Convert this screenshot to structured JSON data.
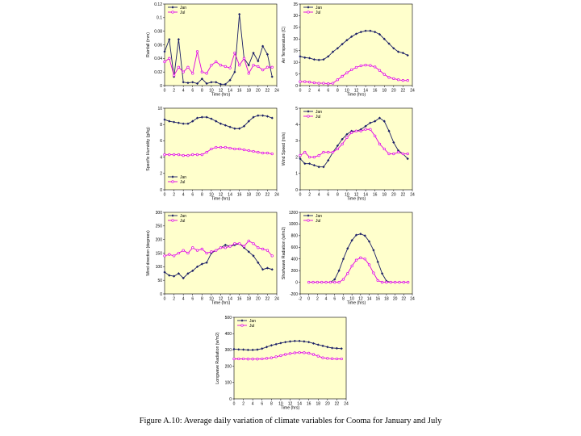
{
  "figure": {
    "caption": "Figure A.10: Average daily variation of climate variables for Cooma for January and July"
  },
  "colors": {
    "jan": "#1b1f66",
    "jul": "#e000e0",
    "plot_bg": "#ffffcc"
  },
  "chart_data": [
    {
      "type": "line",
      "xlabel": "Time (hrs)",
      "ylabel": "Rainfall (mm)",
      "xlim": [
        0,
        24
      ],
      "xticks": [
        0,
        2,
        4,
        6,
        8,
        10,
        12,
        14,
        16,
        18,
        20,
        22,
        24
      ],
      "ylim": [
        0,
        0.12
      ],
      "yticks": [
        "0",
        "0.02",
        "0.04",
        "0.06",
        "0.08",
        "0.1",
        "0.12"
      ],
      "legend": "top-left",
      "series": [
        {
          "name": "Jan",
          "x": [
            0,
            1,
            2,
            3,
            4,
            5,
            6,
            7,
            8,
            9,
            10,
            11,
            12,
            13,
            14,
            15,
            16,
            17,
            18,
            19,
            20,
            21,
            22,
            23
          ],
          "values": [
            0.05,
            0.068,
            0.013,
            0.068,
            0.005,
            0.004,
            0.005,
            0.003,
            0.01,
            0.003,
            0.005,
            0.005,
            0.002,
            0.002,
            0.008,
            0.02,
            0.105,
            0.04,
            0.03,
            0.048,
            0.036,
            0.058,
            0.046,
            0.013
          ]
        },
        {
          "name": "Jul",
          "x": [
            0,
            1,
            2,
            3,
            4,
            5,
            6,
            7,
            8,
            9,
            10,
            11,
            12,
            13,
            14,
            15,
            16,
            17,
            18,
            19,
            20,
            21,
            22,
            23
          ],
          "values": [
            0.035,
            0.04,
            0.015,
            0.027,
            0.02,
            0.027,
            0.018,
            0.05,
            0.02,
            0.018,
            0.03,
            0.035,
            0.03,
            0.028,
            0.026,
            0.048,
            0.03,
            0.04,
            0.018,
            0.03,
            0.028,
            0.023,
            0.027,
            0.027
          ]
        }
      ]
    },
    {
      "type": "line",
      "xlabel": "Time (hrs)",
      "ylabel": "Air Temperature (C)",
      "xlim": [
        0,
        24
      ],
      "xticks": [
        0,
        2,
        4,
        6,
        8,
        10,
        12,
        14,
        16,
        18,
        20,
        22,
        24
      ],
      "ylim": [
        0,
        35
      ],
      "yticks": [
        "0",
        "5",
        "10",
        "15",
        "20",
        "25",
        "30",
        "35"
      ],
      "legend": "top-left",
      "series": [
        {
          "name": "Jan",
          "x": [
            0,
            1,
            2,
            3,
            4,
            5,
            6,
            7,
            8,
            9,
            10,
            11,
            12,
            13,
            14,
            15,
            16,
            17,
            18,
            19,
            20,
            21,
            22,
            23
          ],
          "values": [
            12.5,
            12,
            11.8,
            11.2,
            11,
            11.2,
            12.5,
            14.5,
            16,
            17.8,
            19.5,
            21,
            22.2,
            23,
            23.5,
            23.5,
            23,
            22,
            20,
            18,
            16,
            14.5,
            14,
            13
          ]
        },
        {
          "name": "Jul",
          "x": [
            0,
            1,
            2,
            3,
            4,
            5,
            6,
            7,
            8,
            9,
            10,
            11,
            12,
            13,
            14,
            15,
            16,
            17,
            18,
            19,
            20,
            21,
            22,
            23
          ],
          "values": [
            1.7,
            1.7,
            1.5,
            1.2,
            1,
            1,
            0.8,
            1,
            2.5,
            4,
            5.5,
            6.8,
            7.8,
            8.5,
            8.8,
            8.6,
            8,
            6.5,
            4.8,
            3.5,
            3,
            2.5,
            2.2,
            2.2
          ]
        }
      ]
    },
    {
      "type": "line",
      "xlabel": "Time (hrs)",
      "ylabel": "Specific Humidity (g/kg)",
      "xlim": [
        0,
        24
      ],
      "xticks": [
        0,
        2,
        4,
        6,
        8,
        10,
        12,
        14,
        16,
        18,
        20,
        22,
        24
      ],
      "ylim": [
        0,
        10
      ],
      "yticks": [
        "0",
        "2",
        "4",
        "6",
        "8",
        "10"
      ],
      "legend": "bottom-left",
      "series": [
        {
          "name": "Jan",
          "x": [
            0,
            1,
            2,
            3,
            4,
            5,
            6,
            7,
            8,
            9,
            10,
            11,
            12,
            13,
            14,
            15,
            16,
            17,
            18,
            19,
            20,
            21,
            22,
            23
          ],
          "values": [
            8.6,
            8.4,
            8.3,
            8.2,
            8.1,
            8.1,
            8.4,
            8.8,
            8.9,
            8.9,
            8.7,
            8.4,
            8.1,
            7.9,
            7.7,
            7.5,
            7.5,
            7.8,
            8.4,
            8.9,
            9.1,
            9.1,
            9,
            8.8
          ]
        },
        {
          "name": "Jul",
          "x": [
            0,
            1,
            2,
            3,
            4,
            5,
            6,
            7,
            8,
            9,
            10,
            11,
            12,
            13,
            14,
            15,
            16,
            17,
            18,
            19,
            20,
            21,
            22,
            23
          ],
          "values": [
            4.3,
            4.3,
            4.3,
            4.3,
            4.2,
            4.2,
            4.3,
            4.3,
            4.3,
            4.6,
            5,
            5.2,
            5.2,
            5.2,
            5.1,
            5,
            5,
            4.9,
            4.8,
            4.7,
            4.6,
            4.5,
            4.5,
            4.4
          ]
        }
      ]
    },
    {
      "type": "line",
      "xlabel": "Time (hrs)",
      "ylabel": "Wind Speed (m/s)",
      "xlim": [
        0,
        24
      ],
      "xticks": [
        0,
        2,
        4,
        6,
        8,
        10,
        12,
        14,
        16,
        18,
        20,
        22,
        24
      ],
      "ylim": [
        0,
        5
      ],
      "yticks": [
        "0",
        "1",
        "2",
        "3",
        "4",
        "5"
      ],
      "legend": "top-left",
      "series": [
        {
          "name": "Jan",
          "x": [
            0,
            1,
            2,
            3,
            4,
            5,
            6,
            7,
            8,
            9,
            10,
            11,
            12,
            13,
            14,
            15,
            16,
            17,
            18,
            19,
            20,
            21,
            22,
            23
          ],
          "values": [
            1.9,
            1.6,
            1.6,
            1.5,
            1.4,
            1.4,
            1.8,
            2.3,
            2.7,
            3.1,
            3.4,
            3.6,
            3.6,
            3.7,
            3.9,
            4.1,
            4.2,
            4.4,
            4.2,
            3.6,
            2.9,
            2.4,
            2.2,
            1.9
          ]
        },
        {
          "name": "Jul",
          "x": [
            0,
            1,
            2,
            3,
            4,
            5,
            6,
            7,
            8,
            9,
            10,
            11,
            12,
            13,
            14,
            15,
            16,
            17,
            18,
            19,
            20,
            21,
            22,
            23
          ],
          "values": [
            2.1,
            2.3,
            2,
            2,
            2.1,
            2.3,
            2.3,
            2.3,
            2.5,
            2.8,
            3.2,
            3.5,
            3.6,
            3.6,
            3.7,
            3.7,
            3.3,
            2.8,
            2.5,
            2.2,
            2.2,
            2.3,
            2.2,
            2.2
          ]
        }
      ]
    },
    {
      "type": "line",
      "xlabel": "Time (hrs)",
      "ylabel": "Wind direction (degrees)",
      "xlim": [
        0,
        24
      ],
      "xticks": [
        0,
        2,
        4,
        6,
        8,
        10,
        12,
        14,
        16,
        18,
        20,
        22,
        24
      ],
      "ylim": [
        0,
        300
      ],
      "yticks": [
        "0",
        "50",
        "100",
        "150",
        "200",
        "250",
        "300"
      ],
      "legend": "top-left",
      "series": [
        {
          "name": "Jan",
          "x": [
            0,
            1,
            2,
            3,
            4,
            5,
            6,
            7,
            8,
            9,
            10,
            11,
            12,
            13,
            14,
            15,
            16,
            17,
            18,
            19,
            20,
            21,
            22,
            23
          ],
          "values": [
            80,
            68,
            65,
            75,
            58,
            75,
            85,
            100,
            110,
            115,
            150,
            160,
            170,
            180,
            175,
            180,
            185,
            170,
            155,
            140,
            115,
            90,
            95,
            90
          ]
        },
        {
          "name": "Jul",
          "x": [
            0,
            1,
            2,
            3,
            4,
            5,
            6,
            7,
            8,
            9,
            10,
            11,
            12,
            13,
            14,
            15,
            16,
            17,
            18,
            19,
            20,
            21,
            22,
            23
          ],
          "values": [
            140,
            145,
            140,
            150,
            160,
            150,
            170,
            160,
            165,
            150,
            155,
            160,
            170,
            170,
            175,
            185,
            185,
            175,
            195,
            185,
            170,
            165,
            160,
            140
          ]
        }
      ]
    },
    {
      "type": "line",
      "xlabel": "Time (hrs)",
      "ylabel": "Shortwave Radiation (w/m2)",
      "xlim": [
        -2,
        24
      ],
      "xticks": [
        -2,
        0,
        2,
        4,
        6,
        8,
        10,
        12,
        14,
        16,
        18,
        20,
        22,
        24
      ],
      "ylim": [
        -200,
        1200
      ],
      "yticks": [
        "-200",
        "0",
        "200",
        "400",
        "600",
        "800",
        "1000",
        "1200"
      ],
      "legend": "top-left",
      "series": [
        {
          "name": "Jan",
          "x": [
            0,
            1,
            2,
            3,
            4,
            5,
            6,
            7,
            8,
            9,
            10,
            11,
            12,
            13,
            14,
            15,
            16,
            17,
            18,
            19,
            20,
            21,
            22,
            23
          ],
          "values": [
            0,
            0,
            0,
            0,
            0,
            0,
            50,
            200,
            400,
            580,
            720,
            810,
            830,
            800,
            700,
            550,
            350,
            150,
            20,
            0,
            0,
            0,
            0,
            0
          ]
        },
        {
          "name": "Jul",
          "x": [
            0,
            1,
            2,
            3,
            4,
            5,
            6,
            7,
            8,
            9,
            10,
            11,
            12,
            13,
            14,
            15,
            16,
            17,
            18,
            19,
            20,
            21,
            22,
            23
          ],
          "values": [
            0,
            0,
            0,
            0,
            0,
            0,
            0,
            0,
            50,
            150,
            280,
            380,
            420,
            400,
            300,
            160,
            30,
            0,
            0,
            0,
            0,
            0,
            0,
            0
          ]
        }
      ]
    },
    {
      "type": "line",
      "xlabel": "Time (hrs)",
      "ylabel": "Longwave Radiation (w/m2)",
      "xlim": [
        0,
        24
      ],
      "xticks": [
        0,
        2,
        4,
        6,
        8,
        10,
        12,
        14,
        16,
        18,
        20,
        22,
        24
      ],
      "ylim": [
        0,
        500
      ],
      "yticks": [
        "0",
        "100",
        "200",
        "300",
        "400",
        "500"
      ],
      "legend": "top-left",
      "series": [
        {
          "name": "Jan",
          "x": [
            0,
            1,
            2,
            3,
            4,
            5,
            6,
            7,
            8,
            9,
            10,
            11,
            12,
            13,
            14,
            15,
            16,
            17,
            18,
            19,
            20,
            21,
            22,
            23
          ],
          "values": [
            305,
            303,
            302,
            300,
            300,
            302,
            308,
            318,
            328,
            335,
            342,
            348,
            352,
            355,
            355,
            352,
            348,
            340,
            332,
            325,
            318,
            312,
            310,
            308
          ]
        },
        {
          "name": "Jul",
          "x": [
            0,
            1,
            2,
            3,
            4,
            5,
            6,
            7,
            8,
            9,
            10,
            11,
            12,
            13,
            14,
            15,
            16,
            17,
            18,
            19,
            20,
            21,
            22,
            23
          ],
          "values": [
            245,
            245,
            245,
            244,
            244,
            244,
            245,
            248,
            252,
            258,
            265,
            272,
            278,
            282,
            284,
            283,
            280,
            272,
            262,
            252,
            248,
            246,
            245,
            245
          ]
        }
      ]
    }
  ]
}
